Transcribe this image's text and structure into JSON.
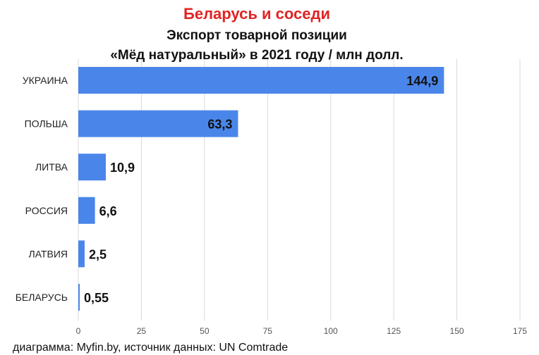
{
  "colors": {
    "title": "#e02424",
    "bar": "#4a86ea",
    "grid": "#d9d9d9",
    "text": "#111111"
  },
  "chart_data": {
    "type": "bar",
    "orientation": "horizontal",
    "title": "Беларусь и соседи",
    "subtitle_lines": [
      "Экспорт товарной позиции",
      "«Мёд натуральный» в 2021 году / млн долл."
    ],
    "categories": [
      "УКРАИНА",
      "ПОЛЬША",
      "ЛИТВА",
      "РОССИЯ",
      "ЛАТВИЯ",
      "БЕЛАРУСЬ"
    ],
    "values": [
      144.9,
      63.3,
      10.9,
      6.6,
      2.5,
      0.55
    ],
    "value_labels": [
      "144,9",
      "63,3",
      "10,9",
      "6,6",
      "2,5",
      "0,55"
    ],
    "xlim": [
      0,
      175
    ],
    "xticks": [
      0,
      25,
      50,
      75,
      100,
      125,
      150,
      175
    ],
    "grid": true,
    "legend": "none",
    "footer": "диаграмма: Myfin.by, источник данных: UN Comtrade"
  }
}
